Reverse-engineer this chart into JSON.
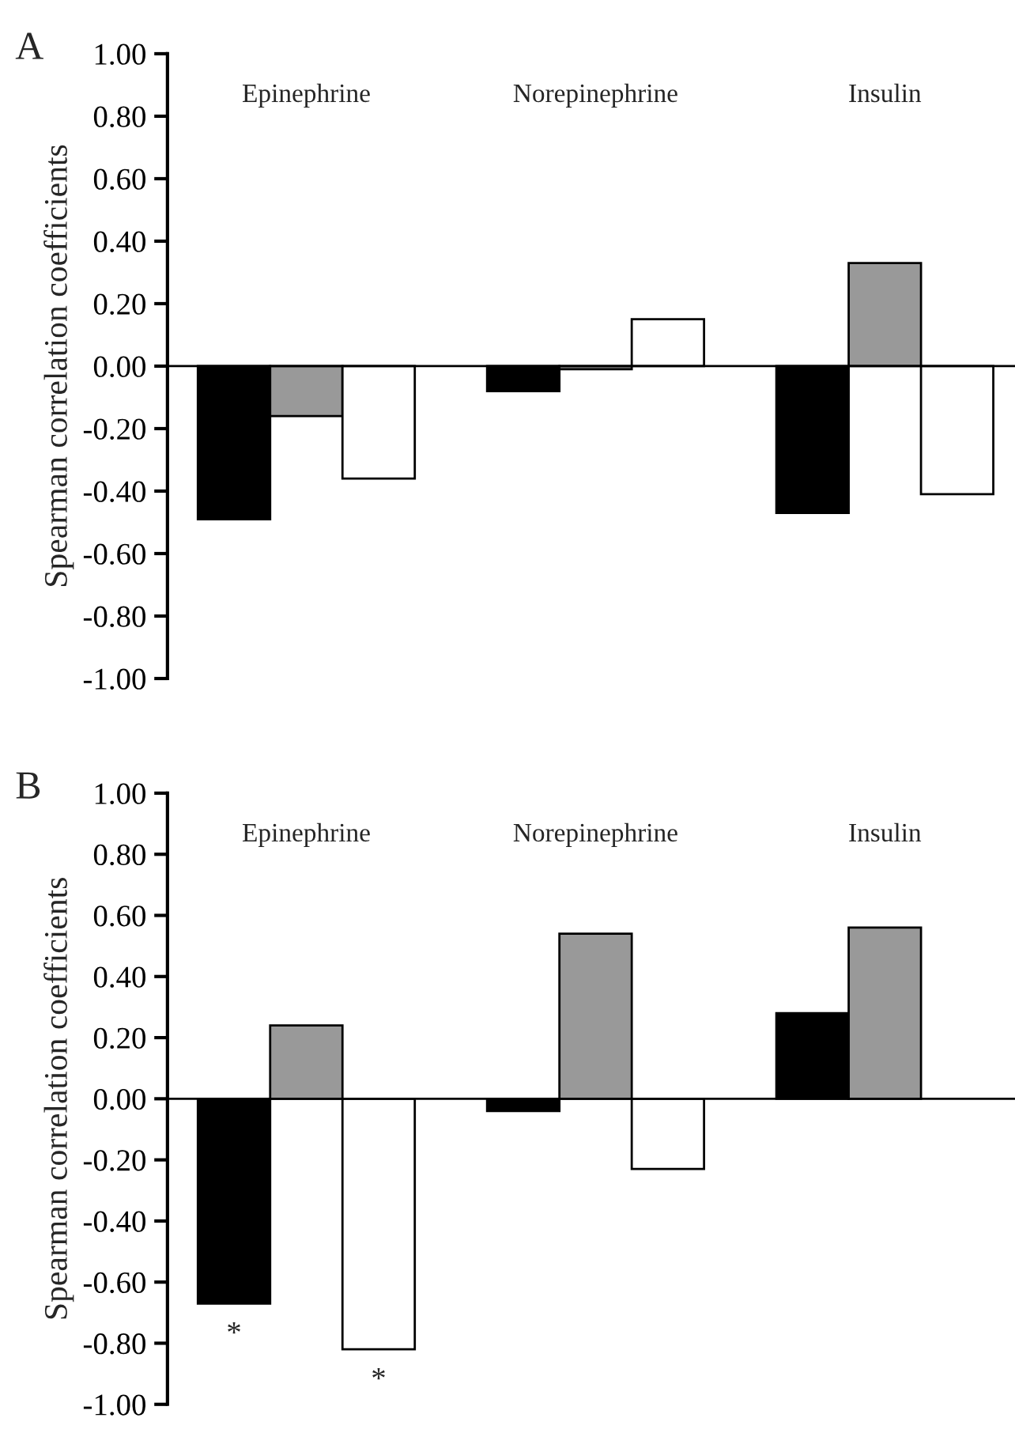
{
  "chart_data": [
    {
      "type": "bar",
      "title": "A",
      "ylabel": "Spearman correlation coefficients",
      "categories": [
        "Epinephrine",
        "Norepinephrine",
        "Insulin"
      ],
      "series": [
        {
          "color": "#000000",
          "values": [
            -0.49,
            -0.08,
            -0.47
          ]
        },
        {
          "color": "#999999",
          "values": [
            -0.16,
            -0.01,
            0.33
          ]
        },
        {
          "color": "#ffffff",
          "values": [
            -0.36,
            0.15,
            -0.41
          ]
        }
      ],
      "ylim": [
        -1,
        1
      ],
      "yticks": [
        {
          "value": -1,
          "label": "-1.00"
        },
        {
          "value": -0.8,
          "label": "-0.80"
        },
        {
          "value": -0.6,
          "label": "-0.60"
        },
        {
          "value": -0.4,
          "label": "-0.40"
        },
        {
          "value": -0.2,
          "label": "-0.20"
        },
        {
          "value": 0,
          "label": "0.00"
        },
        {
          "value": 0.2,
          "label": "0.20"
        },
        {
          "value": 0.4,
          "label": "0.40"
        },
        {
          "value": 0.6,
          "label": "0.60"
        },
        {
          "value": 0.8,
          "label": "0.80"
        },
        {
          "value": 1,
          "label": "1.00"
        }
      ]
    },
    {
      "type": "bar",
      "title": "B",
      "ylabel": "Spearman correlation coefficients",
      "categories": [
        "Epinephrine",
        "Norepinephrine",
        "Insulin"
      ],
      "series": [
        {
          "color": "#000000",
          "values": [
            -0.67,
            -0.04,
            0.28
          ],
          "value_labels": [
            "*",
            null,
            null
          ]
        },
        {
          "color": "#999999",
          "values": [
            0.24,
            0.54,
            0.56
          ]
        },
        {
          "color": "#ffffff",
          "values": [
            -0.82,
            -0.23,
            null
          ],
          "value_labels": [
            "*",
            null,
            null
          ]
        }
      ],
      "ylim": [
        -1,
        1
      ],
      "yticks": [
        {
          "value": -1,
          "label": "-1.00"
        },
        {
          "value": -0.8,
          "label": "-0.80"
        },
        {
          "value": -0.6,
          "label": "-0.60"
        },
        {
          "value": -0.4,
          "label": "-0.40"
        },
        {
          "value": -0.2,
          "label": "-0.20"
        },
        {
          "value": 0,
          "label": "0.00"
        },
        {
          "value": 0.2,
          "label": "0.20"
        },
        {
          "value": 0.4,
          "label": "0.40"
        },
        {
          "value": 0.6,
          "label": "0.60"
        },
        {
          "value": 0.8,
          "label": "0.80"
        },
        {
          "value": 1,
          "label": "1.00"
        }
      ]
    }
  ]
}
